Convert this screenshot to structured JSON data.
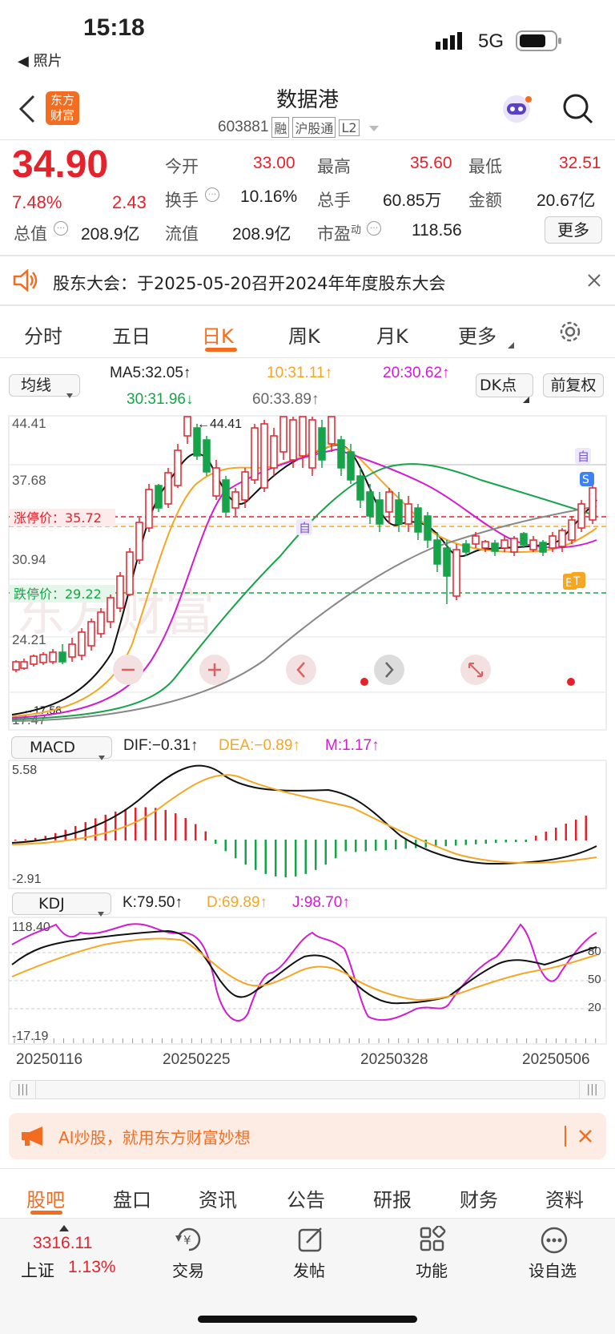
{
  "status": {
    "time": "15:18",
    "back_app": "◀ 照片",
    "network": "5G"
  },
  "header": {
    "logo_line1": "东方",
    "logo_line2": "财富",
    "title": "数据港",
    "code": "603881",
    "badge1": "融",
    "badge2": "沪股通",
    "badge3": "L2"
  },
  "quote": {
    "price": "34.90",
    "pct": "7.48%",
    "change": "2.43",
    "fields": [
      {
        "label": "今开",
        "value": "33.00"
      },
      {
        "label": "最高",
        "value": "35.60"
      },
      {
        "label": "最低",
        "value": "32.51"
      },
      {
        "label": "换手",
        "value": "10.16%"
      },
      {
        "label": "总手",
        "value": "60.85万"
      },
      {
        "label": "金额",
        "value": "20.67亿"
      },
      {
        "label": "总值",
        "value": "208.9亿"
      },
      {
        "label": "流值",
        "value": "208.9亿"
      },
      {
        "label": "市盈",
        "sup": "动",
        "value": "118.56"
      }
    ],
    "more_btn": "更多"
  },
  "notice": {
    "text": "股东大会：于2025-05-20召开2024年年度股东大会"
  },
  "tabs": [
    "分时",
    "五日",
    "日K",
    "周K",
    "月K",
    "更多"
  ],
  "ma_bar": {
    "select": "均线",
    "ma5": "MA5:32.05↑",
    "ma10": "10:31.11↑",
    "ma20": "20:30.62↑",
    "ma30": "30:31.96↓",
    "ma60": "60:33.89↑",
    "dk_btn": "DK点",
    "fq_btn": "前复权"
  },
  "kline": {
    "y_labels": [
      "44.41",
      "37.68",
      "30.94",
      "24.21",
      "17.47"
    ],
    "limit_up": "涨停价：35.72",
    "limit_down": "跌停价：29.22",
    "peak_label": "←44.41",
    "low_label": "←17.58",
    "watermark": "东方财富",
    "tag_self": "自",
    "tag_s": "S",
    "tag_e": "E",
    "tag_t": "T"
  },
  "macd": {
    "select": "MACD",
    "dif": "DIF:−0.31↑",
    "dea": "DEA:−0.89↑",
    "m": "M:1.17↑",
    "ymax": "5.58",
    "ymin": "-2.91"
  },
  "kdj": {
    "select": "KDJ",
    "k": "K:79.50↑",
    "d": "D:69.89↑",
    "j": "J:98.70↑",
    "ymax": "118.40",
    "ymin": "-17.19",
    "levels": [
      "80",
      "50",
      "20"
    ]
  },
  "dates": [
    "20250116",
    "20250225",
    "20250328",
    "20250506"
  ],
  "ai_banner": {
    "text": "AI炒股，就用东方财富妙想"
  },
  "bottom_tabs": [
    "股吧",
    "盘口",
    "资讯",
    "公告",
    "研报",
    "财务",
    "资料"
  ],
  "dock": {
    "index_value": "3316.11",
    "index_name": "上证",
    "index_pct": "1.13%",
    "items": [
      "交易",
      "发帖",
      "功能",
      "设自选"
    ]
  },
  "colors": {
    "up": "#e4222b",
    "down": "#16a34a",
    "accent": "#f36d21"
  }
}
